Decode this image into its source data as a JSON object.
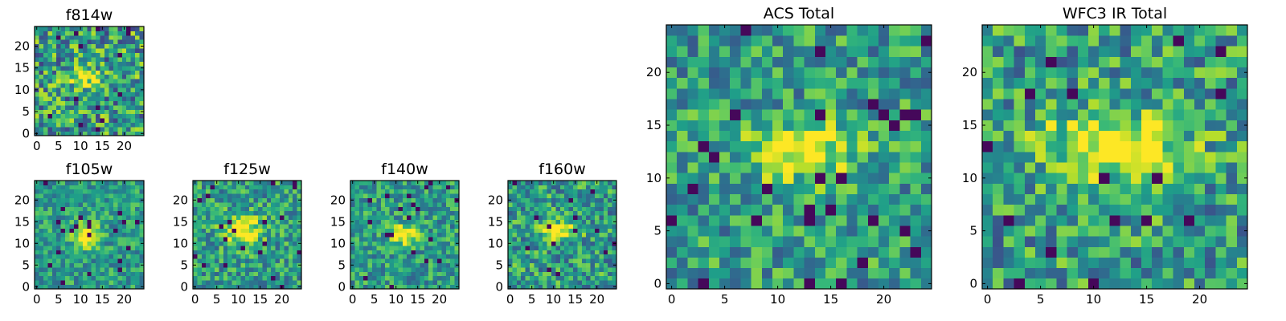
{
  "chart_data": [
    {
      "type": "heatmap",
      "title": "f814w",
      "x_ticks": [
        "0",
        "5",
        "10",
        "15",
        "20"
      ],
      "y_ticks": [
        "0",
        "5",
        "10",
        "15",
        "20"
      ],
      "xlim": [
        -0.5,
        24.5
      ],
      "ylim": [
        -0.5,
        24.5
      ],
      "grid_size": 25,
      "peak_center": [
        11,
        13
      ],
      "peak_width": [
        2.5,
        1.3
      ],
      "noise": 0.36,
      "seed": 11,
      "colormap": "viridis"
    },
    {
      "type": "heatmap",
      "title": "f105w",
      "x_ticks": [
        "0",
        "5",
        "10",
        "15",
        "20"
      ],
      "y_ticks": [
        "0",
        "5",
        "10",
        "15",
        "20"
      ],
      "xlim": [
        -0.5,
        24.5
      ],
      "ylim": [
        -0.5,
        24.5
      ],
      "grid_size": 25,
      "peak_center": [
        11,
        12
      ],
      "peak_width": [
        2.2,
        2.0
      ],
      "noise": 0.22,
      "seed": 23,
      "colormap": "viridis"
    },
    {
      "type": "heatmap",
      "title": "f125w",
      "x_ticks": [
        "0",
        "5",
        "10",
        "15",
        "20"
      ],
      "y_ticks": [
        "0",
        "5",
        "10",
        "15",
        "20"
      ],
      "xlim": [
        -0.5,
        24.5
      ],
      "ylim": [
        -0.5,
        24.5
      ],
      "grid_size": 25,
      "peak_center": [
        11,
        13
      ],
      "peak_width": [
        3.0,
        2.4
      ],
      "noise": 0.26,
      "seed": 37,
      "colormap": "viridis"
    },
    {
      "type": "heatmap",
      "title": "f140w",
      "x_ticks": [
        "0",
        "5",
        "10",
        "15",
        "20"
      ],
      "y_ticks": [
        "0",
        "5",
        "10",
        "15",
        "20"
      ],
      "xlim": [
        -0.5,
        24.5
      ],
      "ylim": [
        -0.5,
        24.5
      ],
      "grid_size": 25,
      "peak_center": [
        12,
        12
      ],
      "peak_width": [
        2.0,
        1.6
      ],
      "noise": 0.24,
      "seed": 41,
      "colormap": "viridis"
    },
    {
      "type": "heatmap",
      "title": "f160w",
      "x_ticks": [
        "0",
        "5",
        "10",
        "15",
        "20"
      ],
      "y_ticks": [
        "0",
        "5",
        "10",
        "15",
        "20"
      ],
      "xlim": [
        -0.5,
        24.5
      ],
      "ylim": [
        -0.5,
        24.5
      ],
      "grid_size": 25,
      "peak_center": [
        11,
        13
      ],
      "peak_width": [
        3.0,
        1.3
      ],
      "noise": 0.28,
      "seed": 53,
      "colormap": "viridis"
    },
    {
      "type": "heatmap",
      "title": "ACS Total",
      "x_ticks": [
        "0",
        "5",
        "10",
        "15",
        "20"
      ],
      "y_ticks": [
        "0",
        "5",
        "10",
        "15",
        "20"
      ],
      "xlim": [
        -0.5,
        24.5
      ],
      "ylim": [
        -0.5,
        24.5
      ],
      "grid_size": 25,
      "peak_center": [
        12,
        12.5
      ],
      "peak_width": [
        3.5,
        1.8
      ],
      "noise": 0.27,
      "seed": 67,
      "colormap": "viridis"
    },
    {
      "type": "heatmap",
      "title": "WFC3 IR Total",
      "x_ticks": [
        "0",
        "5",
        "10",
        "15",
        "20"
      ],
      "y_ticks": [
        "0",
        "5",
        "10",
        "15",
        "20"
      ],
      "xlim": [
        -0.5,
        24.5
      ],
      "ylim": [
        -0.5,
        24.5
      ],
      "grid_size": 25,
      "peak_center": [
        12,
        13
      ],
      "peak_width": [
        4.5,
        2.2
      ],
      "noise": 0.3,
      "seed": 79,
      "colormap": "viridis"
    }
  ]
}
